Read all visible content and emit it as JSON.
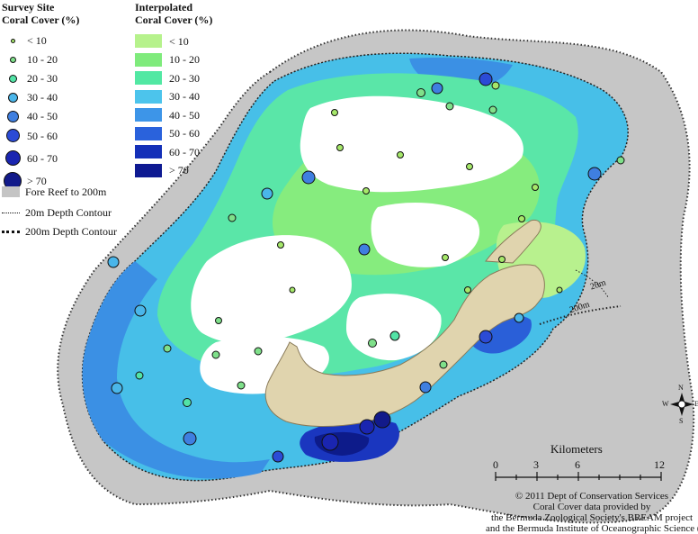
{
  "legend_sites": {
    "title_line1": "Survey Site",
    "title_line2": "Coral Cover (%)",
    "items": [
      {
        "label": "< 10",
        "color": "#a6e86a",
        "r": 2.5
      },
      {
        "label": "10 - 20",
        "color": "#7fe08a",
        "r": 3.5
      },
      {
        "label": "20 - 30",
        "color": "#52e3a6",
        "r": 4.5
      },
      {
        "label": "30 - 40",
        "color": "#4ab6ea",
        "r": 5.5
      },
      {
        "label": "40 - 50",
        "color": "#3f7fe0",
        "r": 6.5
      },
      {
        "label": "50 - 60",
        "color": "#2b4bd6",
        "r": 7.5
      },
      {
        "label": "60 - 70",
        "color": "#1a25b0",
        "r": 8.5
      },
      {
        "label": "> 70",
        "color": "#121a8a",
        "r": 10
      }
    ],
    "fore_reef": "Fore Reef to 200m",
    "contour_20": "20m Depth Contour",
    "contour_200": "200m Depth Contour"
  },
  "legend_interp": {
    "title_line1": "Interpolated",
    "title_line2": "Coral Cover (%)",
    "items": [
      {
        "label": "< 10",
        "color": "#b6f28c"
      },
      {
        "label": "10 - 20",
        "color": "#7feb7c"
      },
      {
        "label": "20 - 30",
        "color": "#52e8a3"
      },
      {
        "label": "30 - 40",
        "color": "#4cc4ec"
      },
      {
        "label": "40 - 50",
        "color": "#3d95e8"
      },
      {
        "label": "50 - 60",
        "color": "#2a62dc"
      },
      {
        "label": "60 - 70",
        "color": "#1430b8"
      },
      {
        "label": "> 70",
        "color": "#0e1a92"
      }
    ]
  },
  "scale": {
    "title": "Kilometers",
    "ticks": [
      "0",
      "3",
      "6",
      "12"
    ]
  },
  "contour_labels": {
    "c20": "20m",
    "c200": "200m"
  },
  "compass": {
    "n": "N",
    "s": "S",
    "e": "E",
    "w": "W"
  },
  "credit": {
    "line1": "© 2011 Dept of Conservation Services",
    "line2": "Coral Cover data provided by",
    "line3": "the Bermuda Zoological Society's BREAM project",
    "line4": "and the Bermuda Institute of Oceanographic Science (BIOS)"
  },
  "colors": {
    "fore_reef": "#c4c4c4",
    "land": "#e0d4ae",
    "land_stroke": "#8a7b5a"
  }
}
